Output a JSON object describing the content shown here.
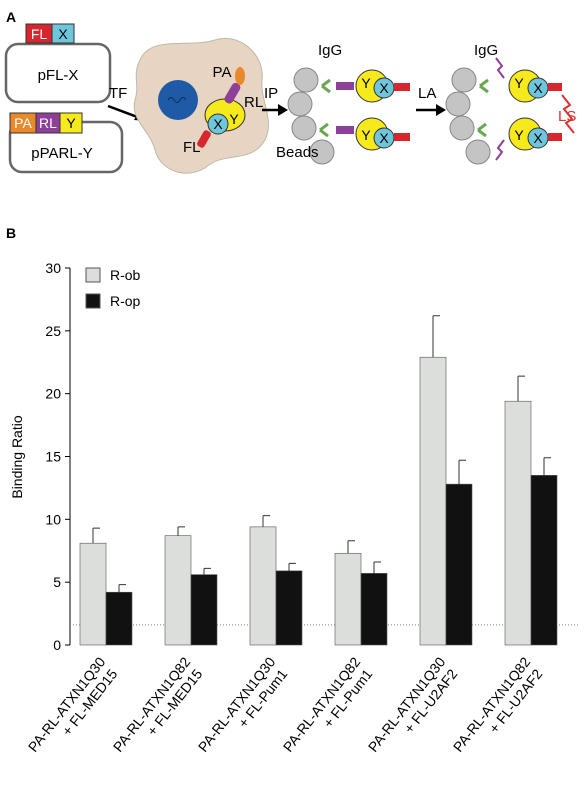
{
  "diagram": {
    "panel_a": "A",
    "plasmid1_fl": "FL",
    "plasmid1_x": "X",
    "plasmid1_name": "pFL-X",
    "plasmid2_pa": "PA",
    "plasmid2_rl": "RL",
    "plasmid2_y": "Y",
    "plasmid2_name": "pPARL-Y",
    "step1": "TF",
    "cell_pa": "PA",
    "cell_rl": "RL",
    "cell_x": "X",
    "cell_y": "Y",
    "cell_fl": "FL",
    "step2": "IP",
    "igg1": "IgG",
    "beads_y1": "Y",
    "beads_x1": "X",
    "beads_y2": "Y",
    "beads_x2": "X",
    "beads": "Beads",
    "step3": "LA",
    "igg2": "IgG",
    "ls_y1": "Y",
    "ls_x1": "X",
    "ls_y2": "Y",
    "ls_x2": "X",
    "ls": "LS"
  },
  "chart_data": {
    "type": "bar",
    "panel_label": "B",
    "y_label": "Binding Ratio",
    "categories": [
      [
        "PA-RL-ATXN1Q30",
        "+ FL-MED15"
      ],
      [
        "PA-RL-ATXN1Q82",
        "+ FL-MED15"
      ],
      [
        "PA-RL-ATXN1Q30",
        "+ FL-Pum1"
      ],
      [
        "PA-RL-ATXN1Q82",
        "+ FL-Pum1"
      ],
      [
        "PA-RL-ATXN1Q30",
        "+ FL-U2AF2"
      ],
      [
        "PA-RL-ATXN1Q82",
        "+ FL-U2AF2"
      ]
    ],
    "series": [
      {
        "name": "R-ob",
        "color": "#dcdedc",
        "values": [
          8.1,
          8.7,
          9.4,
          7.3,
          22.9,
          19.4
        ],
        "errors": [
          1.2,
          0.7,
          0.9,
          1.0,
          3.3,
          2.0
        ]
      },
      {
        "name": "R-op",
        "color": "#111111",
        "values": [
          4.2,
          5.6,
          5.9,
          5.7,
          12.8,
          13.5
        ],
        "errors": [
          0.6,
          0.5,
          0.6,
          0.9,
          1.9,
          1.4
        ]
      }
    ],
    "ylim": [
      0,
      30
    ],
    "yticks": [
      0,
      5,
      10,
      15,
      20,
      25,
      30
    ],
    "reference_line": 1.6,
    "legend": "top-left"
  }
}
